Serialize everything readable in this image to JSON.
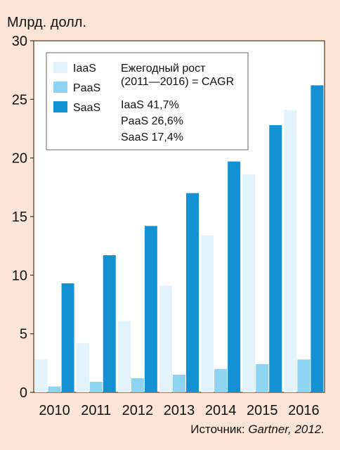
{
  "chart_data": {
    "type": "bar",
    "unit_label": "Млрд. долл.",
    "categories": [
      "2010",
      "2011",
      "2012",
      "2013",
      "2014",
      "2015",
      "2016"
    ],
    "series": [
      {
        "name": "IaaS",
        "color": "#e3f3fb",
        "values": [
          2.8,
          4.2,
          6.1,
          9.1,
          13.4,
          18.6,
          24.1
        ]
      },
      {
        "name": "PaaS",
        "color": "#8fd3f2",
        "values": [
          0.5,
          0.9,
          1.2,
          1.5,
          2.0,
          2.4,
          2.8
        ]
      },
      {
        "name": "SaaS",
        "color": "#1491d2",
        "values": [
          9.3,
          11.7,
          14.2,
          17.0,
          19.7,
          22.8,
          26.2
        ]
      }
    ],
    "ylim": [
      0,
      30
    ],
    "yticks": [
      0,
      5,
      10,
      15,
      20,
      25,
      30
    ],
    "grid": false,
    "legend_position": "top-left",
    "legend_labels": [
      "IaaS",
      "PaaS",
      "SaaS"
    ],
    "cagr_box": {
      "title_line1": "Ежегодный рост",
      "title_line2": "(2011—2016) = CAGR",
      "lines": [
        "IaaS 41,7%",
        "PaaS 26,6%",
        "SaaS 17,4%"
      ]
    },
    "source_label": "Источник: ",
    "source_italic": "Gartner, 2012."
  }
}
